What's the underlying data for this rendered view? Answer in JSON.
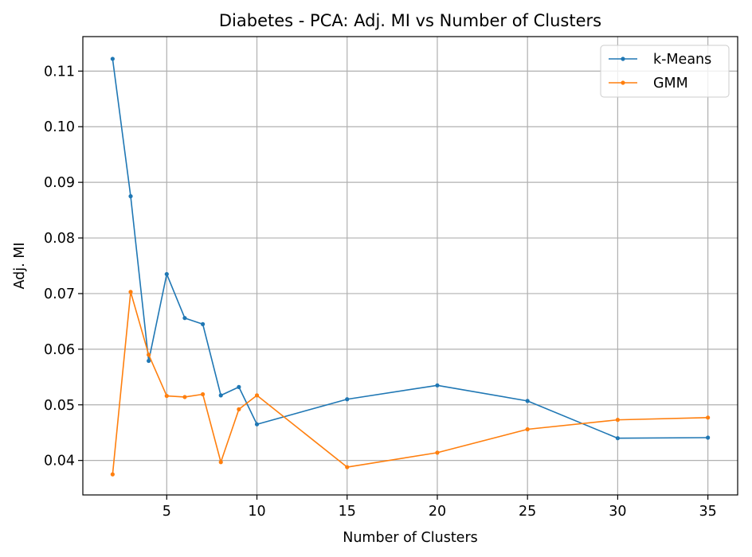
{
  "chart_data": {
    "type": "line",
    "title": "Diabetes - PCA: Adj. MI vs Number of Clusters",
    "xlabel": "Number of Clusters",
    "ylabel": "Adj. MI",
    "xlim": [
      0.35,
      36.65
    ],
    "ylim": [
      0.0338,
      0.1162
    ],
    "xticks": [
      5,
      10,
      15,
      20,
      25,
      30,
      35
    ],
    "yticks": [
      0.04,
      0.05,
      0.06,
      0.07,
      0.08,
      0.09,
      0.1,
      0.11
    ],
    "ytick_labels": [
      "0.04",
      "0.05",
      "0.06",
      "0.07",
      "0.08",
      "0.09",
      "0.10",
      "0.11"
    ],
    "grid": true,
    "legend_position": "top-right",
    "x": [
      2,
      3,
      4,
      5,
      6,
      7,
      8,
      9,
      10,
      15,
      20,
      25,
      30,
      35
    ],
    "series": [
      {
        "name": "k-Means",
        "color": "#1f77b4",
        "values": [
          0.1122,
          0.0875,
          0.0579,
          0.0735,
          0.0656,
          0.0645,
          0.0517,
          0.0532,
          0.0465,
          0.051,
          0.0535,
          0.0507,
          0.044,
          0.0441
        ]
      },
      {
        "name": "GMM",
        "color": "#ff7f0e",
        "values": [
          0.0375,
          0.0703,
          0.059,
          0.0516,
          0.0514,
          0.0519,
          0.0397,
          0.0492,
          0.0517,
          0.0388,
          0.0414,
          0.0456,
          0.0473,
          0.0477
        ]
      }
    ]
  }
}
